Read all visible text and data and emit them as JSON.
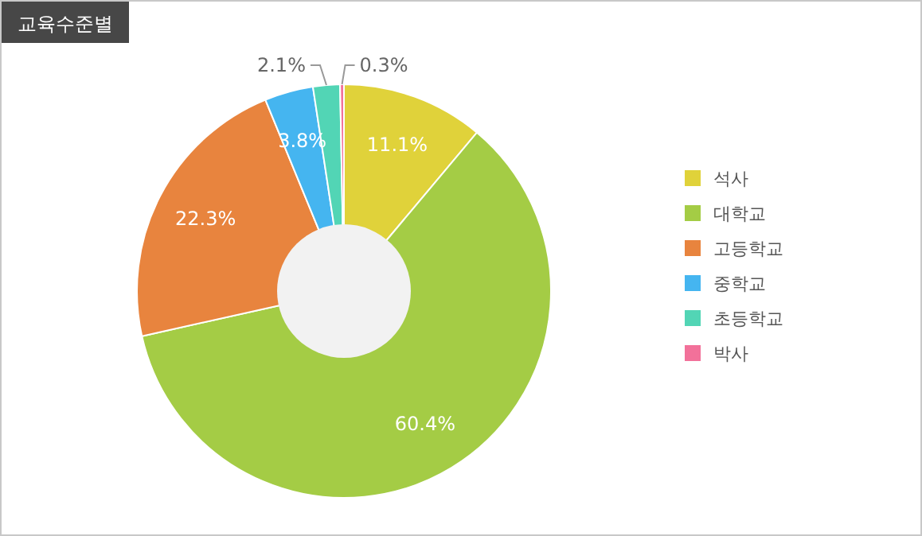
{
  "chart_data": {
    "type": "donut",
    "title": "교육수준별",
    "categories": [
      "석사",
      "대학교",
      "고등학교",
      "중학교",
      "초등학교",
      "박사"
    ],
    "values": [
      11.1,
      60.4,
      22.3,
      3.8,
      2.1,
      0.3
    ],
    "value_labels": [
      "11.1%",
      "60.4%",
      "22.3%",
      "3.8%",
      "2.1%",
      "0.3%"
    ],
    "colors": [
      "#e0d23a",
      "#a4cc45",
      "#e8843e",
      "#45b5f0",
      "#52d5b5",
      "#f2719a"
    ],
    "legend": "right"
  }
}
